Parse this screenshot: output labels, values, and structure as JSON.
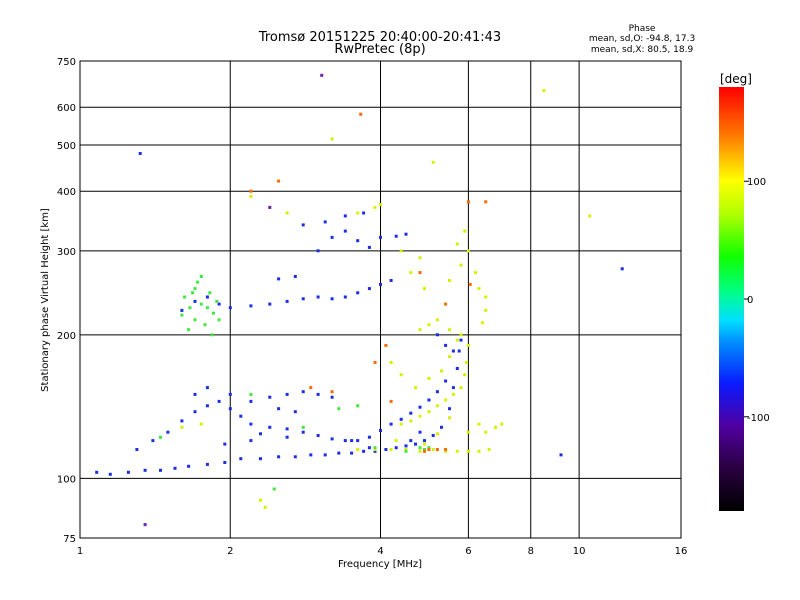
{
  "chart_data": {
    "type": "scatter",
    "title": "Tromsø 20151225 20:40:00-20:41:43",
    "subtitle": "RwPretec (8p)",
    "xlabel": "Frequency [MHz]",
    "ylabel": "Stationary phase Virtual Height [km]",
    "x_scale": "log",
    "y_scale": "log",
    "xlim": [
      1,
      16
    ],
    "ylim": [
      75,
      750
    ],
    "x_ticks": [
      1,
      2,
      4,
      6,
      8,
      10,
      16
    ],
    "y_ticks": [
      75,
      100,
      200,
      300,
      400,
      500,
      600,
      750
    ],
    "x_gridlines": [
      1,
      2,
      4,
      6,
      8,
      10,
      16
    ],
    "y_gridlines": [
      100,
      200,
      300,
      400,
      500,
      600
    ],
    "grid": true,
    "phase_info": {
      "heading": "Phase",
      "line_o": "mean, sd,O: -94.8, 17.3",
      "line_x": "mean, sd,X: 80.5, 18.9"
    },
    "colorbar": {
      "label": "[deg]",
      "range": [
        -180,
        180
      ],
      "ticks": [
        100,
        0,
        -100
      ]
    },
    "series": [
      {
        "values": [
          [
            1.08,
            103
          ],
          [
            1.15,
            102
          ],
          [
            1.25,
            103
          ],
          [
            1.35,
            104
          ],
          [
            1.45,
            104
          ],
          [
            1.55,
            105
          ],
          [
            1.65,
            106
          ],
          [
            1.8,
            107
          ],
          [
            1.95,
            108
          ],
          [
            2.1,
            110
          ],
          [
            2.3,
            110
          ],
          [
            2.5,
            111
          ],
          [
            2.7,
            111
          ],
          [
            2.9,
            112
          ],
          [
            3.1,
            112
          ],
          [
            3.3,
            113
          ],
          [
            3.5,
            113
          ],
          [
            3.7,
            114
          ],
          [
            3.9,
            114
          ],
          [
            4.1,
            115
          ],
          [
            4.3,
            116
          ],
          [
            4.5,
            117
          ],
          [
            4.7,
            118
          ],
          [
            4.9,
            120
          ],
          [
            5.1,
            123
          ],
          [
            5.3,
            128
          ],
          [
            5.5,
            140
          ],
          [
            5.6,
            155
          ],
          [
            5.7,
            170
          ],
          [
            5.75,
            185
          ],
          [
            1.3,
            115
          ],
          [
            1.4,
            120
          ],
          [
            1.5,
            125
          ],
          [
            1.6,
            132
          ],
          [
            1.7,
            138
          ],
          [
            1.8,
            142
          ],
          [
            1.9,
            145
          ],
          [
            2.0,
            140
          ],
          [
            2.1,
            135
          ],
          [
            2.2,
            130
          ],
          [
            2.4,
            128
          ],
          [
            2.6,
            127
          ],
          [
            2.8,
            125
          ],
          [
            3.0,
            123
          ],
          [
            3.2,
            121
          ],
          [
            3.4,
            120
          ],
          [
            3.6,
            120
          ],
          [
            3.8,
            122
          ],
          [
            4.0,
            126
          ],
          [
            4.2,
            130
          ],
          [
            4.4,
            133
          ],
          [
            4.6,
            137
          ],
          [
            4.8,
            141
          ],
          [
            5.0,
            146
          ],
          [
            5.2,
            152
          ],
          [
            5.4,
            160
          ],
          [
            1.7,
            150
          ],
          [
            1.8,
            155
          ],
          [
            2.0,
            150
          ],
          [
            2.2,
            145
          ],
          [
            2.4,
            148
          ],
          [
            2.6,
            150
          ],
          [
            2.8,
            152
          ],
          [
            3.0,
            150
          ],
          [
            3.2,
            148
          ],
          [
            2.5,
            140
          ],
          [
            2.7,
            138
          ],
          [
            1.6,
            225
          ],
          [
            1.7,
            235
          ],
          [
            1.8,
            240
          ],
          [
            1.9,
            232
          ],
          [
            2.0,
            228
          ],
          [
            2.2,
            230
          ],
          [
            2.4,
            232
          ],
          [
            2.6,
            235
          ],
          [
            2.8,
            238
          ],
          [
            3.0,
            240
          ],
          [
            3.2,
            238
          ],
          [
            3.4,
            240
          ],
          [
            3.6,
            245
          ],
          [
            3.8,
            250
          ],
          [
            4.0,
            255
          ],
          [
            4.2,
            260
          ],
          [
            2.5,
            262
          ],
          [
            2.7,
            265
          ],
          [
            3.0,
            300
          ],
          [
            3.2,
            320
          ],
          [
            3.4,
            330
          ],
          [
            3.6,
            315
          ],
          [
            3.8,
            305
          ],
          [
            4.0,
            320
          ],
          [
            4.3,
            322
          ],
          [
            4.5,
            325
          ],
          [
            2.8,
            340
          ],
          [
            3.1,
            345
          ],
          [
            3.4,
            355
          ],
          [
            3.7,
            360
          ],
          [
            5.2,
            200
          ],
          [
            5.4,
            190
          ],
          [
            5.6,
            185
          ],
          [
            5.8,
            195
          ],
          [
            4.6,
            120
          ],
          [
            4.8,
            125
          ],
          [
            3.5,
            120
          ],
          [
            3.8,
            116
          ],
          [
            2.3,
            124
          ],
          [
            2.6,
            122
          ],
          [
            1.95,
            118
          ],
          [
            2.2,
            120
          ],
          [
            9.2,
            112
          ],
          [
            12.2,
            275
          ],
          [
            1.32,
            480
          ]
        ]
      },
      {
        "values": [
          [
            3.6,
            115
          ],
          [
            3.9,
            115
          ],
          [
            4.2,
            115
          ],
          [
            4.5,
            115
          ],
          [
            4.8,
            114
          ],
          [
            5.1,
            115
          ],
          [
            5.4,
            114
          ],
          [
            5.7,
            114
          ],
          [
            6.0,
            114
          ],
          [
            6.3,
            114
          ],
          [
            6.6,
            115
          ],
          [
            4.8,
            205
          ],
          [
            5.0,
            210
          ],
          [
            5.2,
            215
          ],
          [
            5.5,
            205
          ],
          [
            5.8,
            200
          ],
          [
            4.4,
            130
          ],
          [
            4.6,
            132
          ],
          [
            4.8,
            135
          ],
          [
            5.0,
            138
          ],
          [
            5.2,
            142
          ],
          [
            5.4,
            146
          ],
          [
            5.6,
            150
          ],
          [
            5.8,
            155
          ],
          [
            5.9,
            165
          ],
          [
            5.95,
            175
          ],
          [
            6.0,
            190
          ],
          [
            4.2,
            175
          ],
          [
            4.4,
            165
          ],
          [
            4.7,
            155
          ],
          [
            5.0,
            162
          ],
          [
            5.3,
            168
          ],
          [
            5.5,
            180
          ],
          [
            5.7,
            195
          ],
          [
            4.3,
            120
          ],
          [
            4.9,
            118
          ],
          [
            6.0,
            125
          ],
          [
            6.3,
            130
          ],
          [
            6.5,
            125
          ],
          [
            6.8,
            128
          ],
          [
            7.0,
            130
          ],
          [
            5.5,
            260
          ],
          [
            5.8,
            280
          ],
          [
            6.0,
            300
          ],
          [
            5.9,
            330
          ],
          [
            5.7,
            310
          ],
          [
            6.2,
            270
          ],
          [
            6.3,
            250
          ],
          [
            6.5,
            240
          ],
          [
            4.6,
            270
          ],
          [
            4.9,
            250
          ],
          [
            3.6,
            360
          ],
          [
            3.9,
            370
          ],
          [
            4.0,
            375
          ],
          [
            2.2,
            390
          ],
          [
            2.4,
            370
          ],
          [
            2.6,
            360
          ],
          [
            8.5,
            650
          ],
          [
            10.5,
            355
          ],
          [
            5.1,
            460
          ],
          [
            4.4,
            300
          ],
          [
            4.8,
            290
          ],
          [
            3.2,
            515
          ],
          [
            2.3,
            90
          ],
          [
            2.35,
            87
          ],
          [
            1.6,
            128
          ],
          [
            1.75,
            130
          ],
          [
            5.2,
            124
          ],
          [
            5.5,
            134
          ],
          [
            6.4,
            212
          ],
          [
            6.5,
            225
          ]
        ]
      },
      {
        "values": [
          [
            1.62,
            240
          ],
          [
            1.7,
            250
          ],
          [
            1.75,
            232
          ],
          [
            1.8,
            228
          ],
          [
            1.85,
            222
          ],
          [
            1.7,
            215
          ],
          [
            1.65,
            205
          ],
          [
            1.78,
            210
          ],
          [
            1.9,
            215
          ],
          [
            1.68,
            245
          ],
          [
            1.72,
            258
          ],
          [
            1.82,
            245
          ],
          [
            1.6,
            220
          ],
          [
            1.88,
            235
          ],
          [
            1.75,
            265
          ],
          [
            1.66,
            228
          ],
          [
            1.84,
            200
          ],
          [
            4.8,
            116
          ],
          [
            4.9,
            115
          ],
          [
            5.0,
            116
          ],
          [
            4.5,
            114
          ],
          [
            3.9,
            116
          ],
          [
            2.45,
            95
          ],
          [
            2.2,
            150
          ],
          [
            3.3,
            140
          ],
          [
            3.6,
            142
          ],
          [
            1.45,
            122
          ],
          [
            2.8,
            128
          ]
        ]
      },
      {
        "values": [
          [
            5.2,
            115
          ],
          [
            5.0,
            115
          ],
          [
            4.9,
            114
          ],
          [
            5.4,
            115
          ],
          [
            3.9,
            175
          ],
          [
            4.1,
            190
          ],
          [
            4.2,
            145
          ],
          [
            3.65,
            580
          ],
          [
            2.2,
            400
          ],
          [
            4.8,
            270
          ],
          [
            6.05,
            255
          ],
          [
            6.5,
            380
          ],
          [
            2.5,
            420
          ],
          [
            5.4,
            232
          ],
          [
            2.9,
            155
          ],
          [
            3.2,
            152
          ],
          [
            6.0,
            380
          ]
        ]
      },
      {
        "values": [
          [
            3.05,
            700
          ],
          [
            1.35,
            80
          ],
          [
            2.4,
            370
          ]
        ]
      }
    ]
  }
}
